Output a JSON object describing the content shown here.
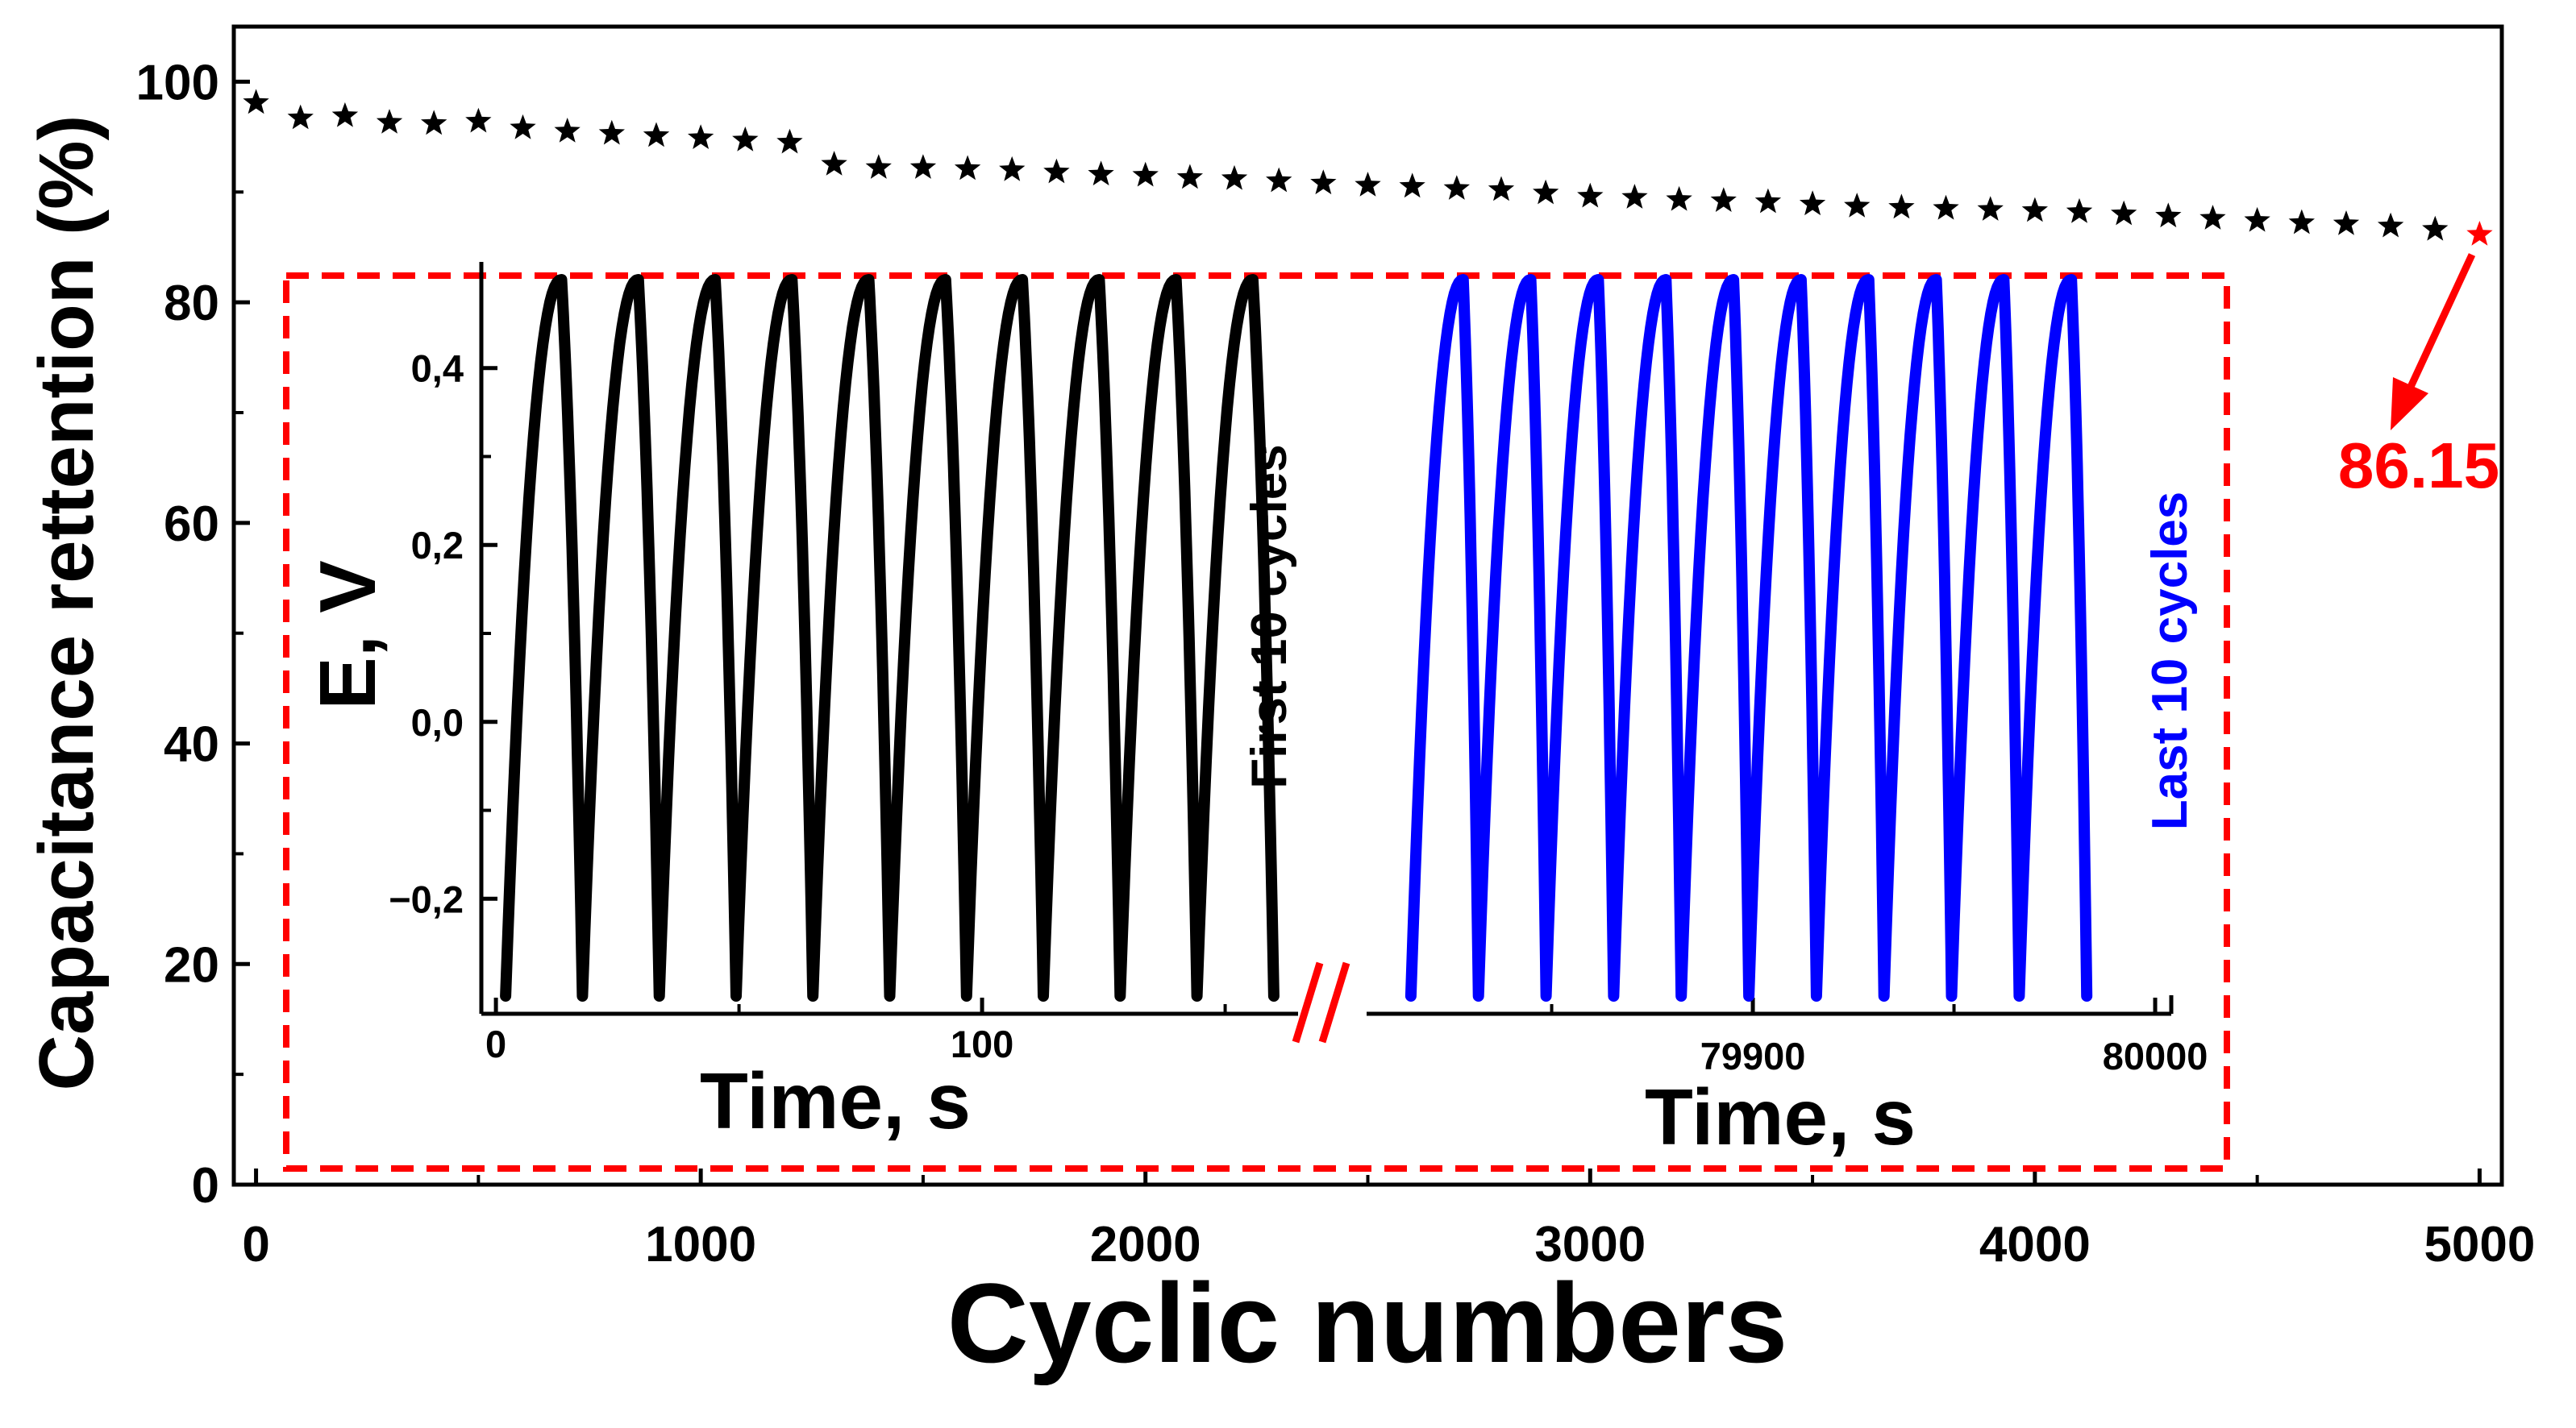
{
  "chart_data": [
    {
      "type": "scatter",
      "name": "main",
      "xlabel": "Cyclic numbers",
      "ylabel": "Capacitance rettention (%)",
      "xlim": [
        -50,
        5050
      ],
      "ylim": [
        0,
        105
      ],
      "x_ticks": [
        0,
        1000,
        2000,
        3000,
        4000,
        5000
      ],
      "x_tick_labels": [
        "0",
        "1000",
        "2000",
        "3000",
        "4000",
        "5000"
      ],
      "y_ticks": [
        0,
        20,
        40,
        60,
        80,
        100
      ],
      "y_tick_labels": [
        "0",
        "20",
        "40",
        "60",
        "80",
        "100"
      ],
      "x": [
        0,
        100,
        200,
        300,
        400,
        500,
        600,
        700,
        800,
        900,
        1000,
        1100,
        1200,
        1300,
        1400,
        1500,
        1600,
        1700,
        1800,
        1900,
        2000,
        2100,
        2200,
        2300,
        2400,
        2500,
        2600,
        2700,
        2800,
        2900,
        3000,
        3100,
        3200,
        3300,
        3400,
        3500,
        3600,
        3700,
        3800,
        3900,
        4000,
        4100,
        4200,
        4300,
        4400,
        4500,
        4600,
        4700,
        4800,
        4900,
        5000
      ],
      "y": [
        98.1,
        96.7,
        96.9,
        96.3,
        96.2,
        96.4,
        95.8,
        95.5,
        95.3,
        95.1,
        94.9,
        94.7,
        94.5,
        92.5,
        92.2,
        92.2,
        92.1,
        92.0,
        91.8,
        91.6,
        91.5,
        91.3,
        91.2,
        91.0,
        90.8,
        90.6,
        90.5,
        90.3,
        90.2,
        89.9,
        89.6,
        89.5,
        89.3,
        89.2,
        89.1,
        88.9,
        88.7,
        88.6,
        88.5,
        88.4,
        88.3,
        88.2,
        88.0,
        87.8,
        87.6,
        87.4,
        87.2,
        87.1,
        86.9,
        86.6,
        86.15
      ],
      "marker": "star",
      "marker_color": "#000000",
      "highlight": {
        "x": 5000,
        "y": 86.15,
        "label": "86.15",
        "color": "#ff0000"
      },
      "inset_border_color": "#ff0000"
    },
    {
      "type": "line",
      "name": "inset-first",
      "ylabel": "E, V",
      "xlabel": "Time, s",
      "xlim": [
        -3,
        165
      ],
      "ylim": [
        -0.33,
        0.52
      ],
      "x_ticks": [
        0,
        100
      ],
      "x_tick_labels": [
        "0",
        "100"
      ],
      "y_ticks": [
        -0.2,
        0.0,
        0.2,
        0.4
      ],
      "y_tick_labels": [
        "−0,2",
        "0,0",
        "0,2",
        "0,4"
      ],
      "annotation": "First 10 cycles",
      "series": [
        {
          "name": "First 10 cycles",
          "color": "#000000",
          "cycles": 10,
          "t_start": 2,
          "period": 15.8,
          "charge_time": 11.5,
          "e_min": -0.31,
          "e_max": 0.5
        }
      ]
    },
    {
      "type": "line",
      "name": "inset-last",
      "xlabel": "Time, s",
      "xlim": [
        79804,
        80004
      ],
      "ylim": [
        -0.33,
        0.52
      ],
      "x_ticks": [
        79900,
        80000
      ],
      "x_tick_labels": [
        "79900",
        "80000"
      ],
      "annotation": "Last 10 cycles",
      "break_mark_color": "#ff0000",
      "series": [
        {
          "name": "Last 10 cycles",
          "color": "#0000ff",
          "cycles": 10,
          "t_start": 79815,
          "period": 16.8,
          "charge_time": 13.0,
          "e_min": -0.31,
          "e_max": 0.5
        }
      ]
    }
  ]
}
